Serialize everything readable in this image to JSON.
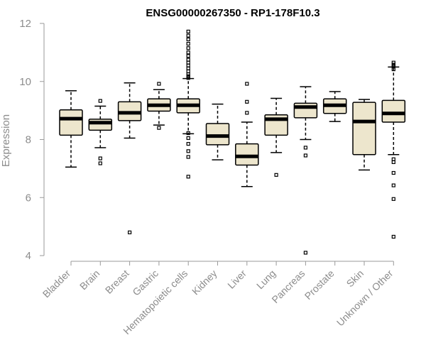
{
  "chart_data": {
    "type": "boxplot",
    "title": "ENSG00000267350 - RP1-178F10.3",
    "xlabel": "",
    "ylabel": "Expression",
    "ylim": [
      4,
      12
    ],
    "yticks": [
      4,
      6,
      8,
      10,
      12
    ],
    "box_fill": "#ede6cd",
    "categories": [
      "Bladder",
      "Brain",
      "Breast",
      "Gastric",
      "Hematopoietic cells",
      "Kidney",
      "Liver",
      "Lung",
      "Pancreas",
      "Prostate",
      "Skin",
      "Unknown / Other"
    ],
    "boxes": [
      {
        "whisker_low": 7.05,
        "q1": 8.15,
        "median": 8.72,
        "q3": 9.02,
        "whisker_high": 9.68,
        "outliers": []
      },
      {
        "whisker_low": 7.72,
        "q1": 8.32,
        "median": 8.58,
        "q3": 8.7,
        "whisker_high": 9.15,
        "outliers": [
          7.35,
          7.18,
          9.33
        ]
      },
      {
        "whisker_low": 8.05,
        "q1": 8.65,
        "median": 8.92,
        "q3": 9.3,
        "whisker_high": 9.95,
        "outliers": [
          4.8
        ]
      },
      {
        "whisker_low": 8.5,
        "q1": 8.98,
        "median": 9.18,
        "q3": 9.4,
        "whisker_high": 9.72,
        "outliers": [
          9.92,
          8.4
        ]
      },
      {
        "whisker_low": 8.2,
        "q1": 8.92,
        "median": 9.18,
        "q3": 9.4,
        "whisker_high": 10.1,
        "outliers": [
          11.72,
          11.58,
          11.45,
          11.3,
          11.15,
          11.0,
          10.88,
          10.75,
          10.65,
          10.55,
          10.45,
          10.35,
          10.25,
          10.18,
          10.12,
          8.22,
          8.05,
          7.85,
          7.6,
          7.4,
          6.72
        ]
      },
      {
        "whisker_low": 7.3,
        "q1": 7.82,
        "median": 8.12,
        "q3": 8.55,
        "whisker_high": 9.22,
        "outliers": []
      },
      {
        "whisker_low": 6.38,
        "q1": 7.12,
        "median": 7.42,
        "q3": 7.85,
        "whisker_high": 8.6,
        "outliers": [
          9.92,
          9.3,
          8.92
        ]
      },
      {
        "whisker_low": 7.55,
        "q1": 8.15,
        "median": 8.7,
        "q3": 8.85,
        "whisker_high": 9.42,
        "outliers": [
          6.78
        ]
      },
      {
        "whisker_low": 8.0,
        "q1": 8.75,
        "median": 9.12,
        "q3": 9.25,
        "whisker_high": 9.82,
        "outliers": [
          7.72,
          7.45,
          4.1
        ]
      },
      {
        "whisker_low": 8.62,
        "q1": 8.9,
        "median": 9.18,
        "q3": 9.4,
        "whisker_high": 9.65,
        "outliers": []
      },
      {
        "whisker_low": 6.95,
        "q1": 7.48,
        "median": 8.62,
        "q3": 9.28,
        "whisker_high": 9.38,
        "outliers": []
      },
      {
        "whisker_low": 7.48,
        "q1": 8.6,
        "median": 8.9,
        "q3": 9.35,
        "whisker_high": 10.5,
        "outliers": [
          10.65,
          10.58,
          10.52,
          10.42,
          7.32,
          7.22,
          6.85,
          6.42,
          5.95,
          4.65
        ]
      }
    ]
  }
}
